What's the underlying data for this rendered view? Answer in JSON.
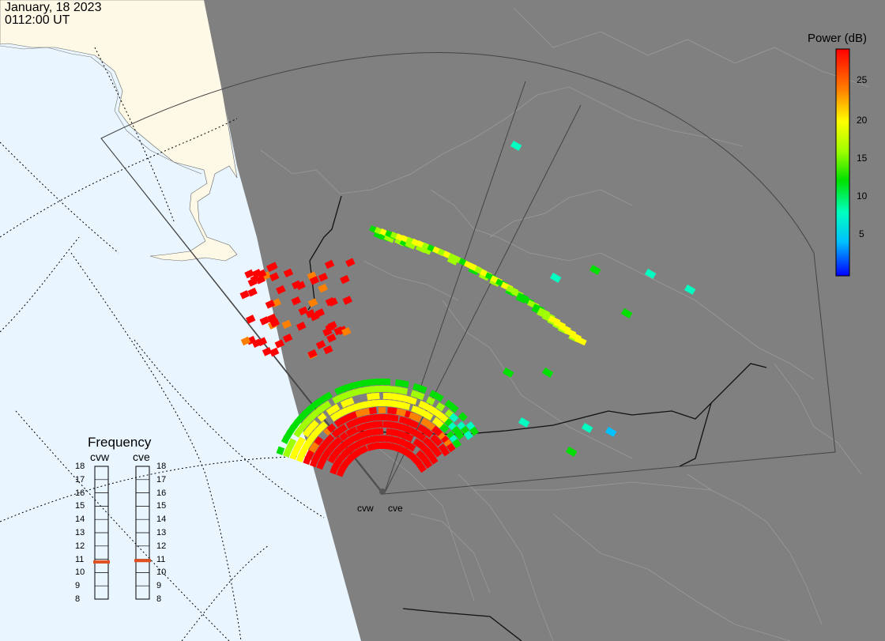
{
  "header": {
    "date": "January, 18 2023",
    "time": "0112:00 UT"
  },
  "colorbar": {
    "title": "Power (dB)",
    "ticks": [
      "25",
      "20",
      "15",
      "10",
      "5"
    ],
    "stops": [
      "#ff0000",
      "#ff8000",
      "#ffff00",
      "#a0ff00",
      "#00e000",
      "#00ffc0",
      "#00c0ff",
      "#0000ff"
    ]
  },
  "frequency_panel": {
    "title": "Frequency",
    "radars": [
      {
        "name": "cvw",
        "frequency": 10.8
      },
      {
        "name": "cve",
        "frequency": 10.9
      }
    ],
    "scale": [
      "18",
      "17",
      "16",
      "15",
      "14",
      "13",
      "12",
      "11",
      "10",
      "9",
      "8"
    ]
  },
  "radar_labels": [
    "cvw",
    "cve"
  ],
  "colors": {
    "ocean": "#eaf6ff",
    "land_day": "#fdf9e6",
    "night": "#808080",
    "fov_line": "#444444",
    "coast_night": "#9a9a9a",
    "freq_marker": "#e05020"
  }
}
